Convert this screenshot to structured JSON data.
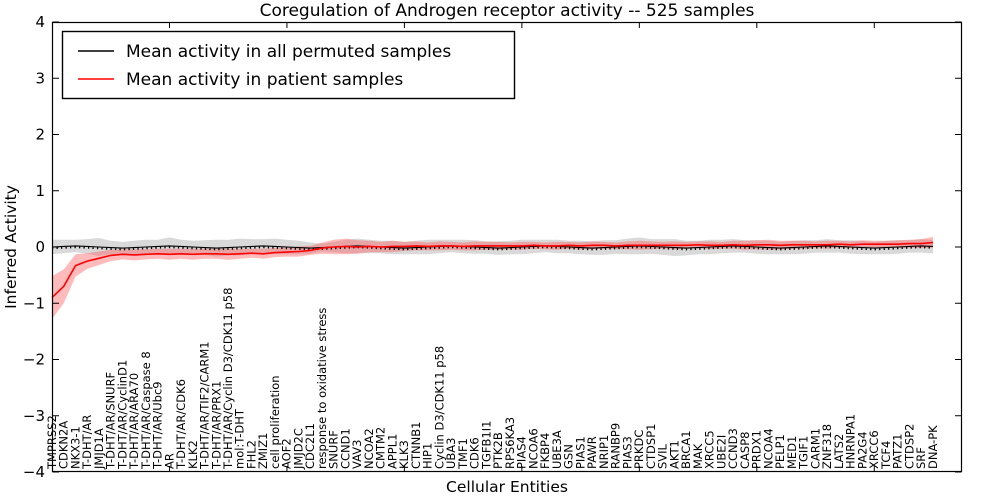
{
  "figure": {
    "title": "Coregulation of Androgen receptor activity -- 525 samples",
    "xlabel": "Cellular Entities",
    "ylabel": "Inferred Activity"
  },
  "legend": {
    "items": [
      {
        "label": "Mean activity in all permuted samples",
        "color": "#000000"
      },
      {
        "label": "Mean activity in patient samples",
        "color": "#ff0000"
      }
    ]
  },
  "axes": {
    "y_ticks": [
      "4",
      "3",
      "2",
      "1",
      "0",
      "−1",
      "−2",
      "−3",
      "−4"
    ],
    "y_min": -4,
    "y_max": 4
  },
  "chart_data": {
    "type": "line",
    "title": "Coregulation of Androgen receptor activity -- 525 samples",
    "xlabel": "Cellular Entities",
    "ylabel": "Inferred Activity",
    "ylim": [
      -4,
      4
    ],
    "grid": false,
    "legend_position": "upper left",
    "x_categories": [
      "TMPRSS2",
      "CDKN2A",
      "NKX3-1",
      "T-DHT/AR",
      "JMJD1A",
      "T-DHT/AR/SNURF",
      "T-DHT/AR/CyclinD1",
      "T-DHT/AR/ARA70",
      "T-DHT/AR/Caspase 8",
      "T-DHT/AR/Ubc9",
      "AR",
      "T-DHT/AR/CDK6",
      "KLK2",
      "T-DHT/AR/TIF2/CARM1",
      "T-DHT/AR/PRX1",
      "T-DHT/AR/Cyclin D3/CDK11 p58",
      "mol:T-DHT",
      "FHL2",
      "ZMIZ1",
      "cell proliferation",
      "AOF2",
      "JMJD2C",
      "CDC2L1",
      "response to oxidative stress",
      "SNURF",
      "CCND1",
      "VAV3",
      "NCOA2",
      "CMTM2",
      "APPL1",
      "KLK3",
      "CTNNB1",
      "HIP1",
      "Cyclin D3/CDK11 p58",
      "UBA3",
      "TMF1",
      "CDK6",
      "TGFB1I1",
      "PTK2B",
      "RPS6KA3",
      "PIAS4",
      "NCOA6",
      "FKBP4",
      "UBE3A",
      "GSN",
      "PIAS1",
      "PAWR",
      "NRIP1",
      "RANBP9",
      "PIAS3",
      "PRKDC",
      "CTDSP1",
      "SVIL",
      "AKT1",
      "BRCA1",
      "MAK",
      "XRCC5",
      "UBE2I",
      "CCND3",
      "CASP8",
      "PRDX1",
      "NCOA4",
      "PELP1",
      "MED1",
      "TGIF1",
      "CARM1",
      "ZNF318",
      "LATS2",
      "HNRNPA1",
      "PA2G4",
      "XRCC6",
      "TCF4",
      "PATZ1",
      "CTDSP2",
      "SRF",
      "DNA-PK"
    ],
    "series": [
      {
        "name": "Mean activity in all permuted samples",
        "color": "#000000",
        "band_color": "#aaaaaa",
        "band_opacity": 0.45,
        "values": [
          0,
          0.01,
          0.02,
          0.01,
          0,
          -0.01,
          -0.02,
          -0.01,
          0,
          0.01,
          0.02,
          0.01,
          0,
          -0.01,
          -0.02,
          -0.01,
          0,
          0.01,
          0.02,
          0.01,
          0,
          -0.01,
          -0.02,
          -0.01,
          0,
          0.01,
          0.02,
          0.01,
          0,
          -0.01,
          -0.02,
          -0.01,
          0,
          0.01,
          0.02,
          0.01,
          0,
          -0.01,
          -0.02,
          -0.01,
          0,
          0.01,
          0.02,
          0.01,
          0,
          -0.01,
          -0.02,
          -0.01,
          0,
          0.01,
          0.02,
          0.01,
          0,
          -0.01,
          -0.02,
          -0.01,
          0,
          0.01,
          0.02,
          0.01,
          0,
          -0.01,
          -0.02,
          -0.01,
          0,
          0.01,
          0.02,
          0.01,
          0,
          -0.01,
          -0.02,
          -0.01,
          0,
          0.01,
          0.02,
          0.01
        ],
        "band_halfwidth": [
          0.13,
          0.12,
          0.11,
          0.13,
          0.16,
          0.12,
          0.11,
          0.12,
          0.13,
          0.12,
          0.15,
          0.12,
          0.11,
          0.13,
          0.15,
          0.14,
          0.15,
          0.13,
          0.12,
          0.14,
          0.13,
          0.12,
          0.1,
          0.07,
          0.09,
          0.12,
          0.13,
          0.12,
          0.11,
          0.12,
          0.11,
          0.12,
          0.13,
          0.12,
          0.11,
          0.12,
          0.12,
          0.11,
          0.12,
          0.12,
          0.13,
          0.12,
          0.11,
          0.12,
          0.11,
          0.12,
          0.12,
          0.13,
          0.12,
          0.14,
          0.15,
          0.13,
          0.14,
          0.15,
          0.13,
          0.12,
          0.13,
          0.12,
          0.12,
          0.11,
          0.12,
          0.12,
          0.11,
          0.12,
          0.12,
          0.11,
          0.12,
          0.11,
          0.12,
          0.12,
          0.11,
          0.12,
          0.12,
          0.11,
          0.12,
          0.12
        ]
      },
      {
        "name": "Mean activity in patient samples",
        "color": "#ff0000",
        "band_color": "#ff5555",
        "band_opacity": 0.4,
        "values": [
          -0.9,
          -0.7,
          -0.33,
          -0.25,
          -0.2,
          -0.15,
          -0.13,
          -0.14,
          -0.13,
          -0.12,
          -0.13,
          -0.12,
          -0.13,
          -0.12,
          -0.12,
          -0.13,
          -0.12,
          -0.11,
          -0.12,
          -0.1,
          -0.09,
          -0.08,
          -0.06,
          -0.02,
          0.0,
          0.01,
          0.0,
          0.01,
          0.0,
          0.01,
          0.01,
          0.02,
          0.01,
          0.02,
          0.02,
          0.01,
          0.02,
          0.02,
          0.02,
          0.02,
          0.02,
          0.03,
          0.02,
          0.02,
          0.03,
          0.02,
          0.03,
          0.03,
          0.02,
          0.03,
          0.03,
          0.03,
          0.03,
          0.03,
          0.03,
          0.04,
          0.03,
          0.03,
          0.04,
          0.03,
          0.04,
          0.04,
          0.03,
          0.04,
          0.04,
          0.04,
          0.04,
          0.05,
          0.04,
          0.05,
          0.05,
          0.05,
          0.05,
          0.06,
          0.06,
          0.08
        ],
        "band_halfwidth": [
          0.38,
          0.3,
          0.2,
          0.14,
          0.12,
          0.1,
          0.09,
          0.1,
          0.09,
          0.09,
          0.1,
          0.09,
          0.1,
          0.09,
          0.09,
          0.1,
          0.09,
          0.08,
          0.09,
          0.08,
          0.08,
          0.09,
          0.08,
          0.1,
          0.13,
          0.14,
          0.12,
          0.1,
          0.09,
          0.1,
          0.08,
          0.08,
          0.07,
          0.08,
          0.07,
          0.07,
          0.08,
          0.07,
          0.07,
          0.06,
          0.07,
          0.06,
          0.06,
          0.07,
          0.06,
          0.06,
          0.07,
          0.06,
          0.06,
          0.07,
          0.08,
          0.07,
          0.06,
          0.07,
          0.06,
          0.06,
          0.07,
          0.06,
          0.07,
          0.08,
          0.08,
          0.09,
          0.08,
          0.07,
          0.07,
          0.06,
          0.07,
          0.06,
          0.06,
          0.07,
          0.06,
          0.06,
          0.07,
          0.07,
          0.08,
          0.1
        ]
      }
    ]
  }
}
